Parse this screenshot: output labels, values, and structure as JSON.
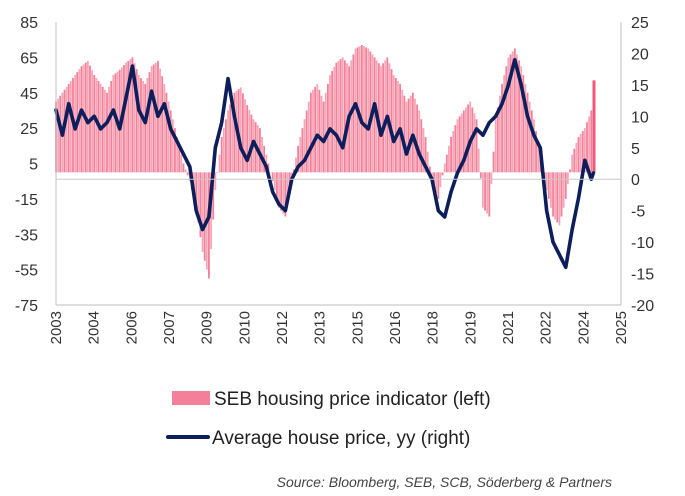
{
  "chart_data": {
    "type": "bar+line",
    "colors": {
      "bars": "#f47f98",
      "bars_light": "#f6a6b6",
      "bars_last": "#f0587a",
      "line": "#0c1f5c"
    },
    "left_axis": {
      "ylim": [
        -75,
        85
      ],
      "ticks": [
        "85",
        "65",
        "45",
        "25",
        "5",
        "-15",
        "-35",
        "-55",
        "-75"
      ]
    },
    "right_axis": {
      "ylim": [
        -20,
        25
      ],
      "ticks": [
        "25",
        "20",
        "15",
        "10",
        "5",
        "0",
        "-5",
        "-10",
        "-15",
        "-20"
      ]
    },
    "x_axis": {
      "range": [
        "2003-01",
        "2025-03"
      ],
      "ticks": [
        "2003",
        "2004",
        "2006",
        "2007",
        "2009",
        "2010",
        "2012",
        "2013",
        "2015",
        "2016",
        "2018",
        "2019",
        "2021",
        "2022",
        "2024",
        "2025"
      ]
    },
    "series": [
      {
        "name": "SEB housing price indicator (left)",
        "type": "bar",
        "axis": "left",
        "points": [
          [
            "2003-01",
            40
          ],
          [
            "2003-04",
            45
          ],
          [
            "2003-07",
            50
          ],
          [
            "2003-10",
            55
          ],
          [
            "2004-01",
            60
          ],
          [
            "2004-04",
            63
          ],
          [
            "2004-07",
            55
          ],
          [
            "2004-10",
            50
          ],
          [
            "2005-01",
            45
          ],
          [
            "2005-04",
            55
          ],
          [
            "2005-07",
            58
          ],
          [
            "2005-10",
            62
          ],
          [
            "2006-01",
            65
          ],
          [
            "2006-04",
            55
          ],
          [
            "2006-07",
            50
          ],
          [
            "2006-10",
            60
          ],
          [
            "2007-01",
            63
          ],
          [
            "2007-04",
            50
          ],
          [
            "2007-07",
            35
          ],
          [
            "2007-10",
            20
          ],
          [
            "2008-01",
            5
          ],
          [
            "2008-04",
            -5
          ],
          [
            "2008-07",
            -20
          ],
          [
            "2008-10",
            -45
          ],
          [
            "2009-01",
            -60
          ],
          [
            "2009-04",
            -10
          ],
          [
            "2009-07",
            20
          ],
          [
            "2009-10",
            35
          ],
          [
            "2010-01",
            45
          ],
          [
            "2010-04",
            48
          ],
          [
            "2010-07",
            38
          ],
          [
            "2010-10",
            30
          ],
          [
            "2011-01",
            25
          ],
          [
            "2011-04",
            10
          ],
          [
            "2011-07",
            -5
          ],
          [
            "2011-10",
            -20
          ],
          [
            "2012-01",
            -25
          ],
          [
            "2012-04",
            -5
          ],
          [
            "2012-07",
            15
          ],
          [
            "2012-10",
            30
          ],
          [
            "2013-01",
            45
          ],
          [
            "2013-04",
            50
          ],
          [
            "2013-07",
            40
          ],
          [
            "2013-10",
            55
          ],
          [
            "2014-01",
            62
          ],
          [
            "2014-04",
            65
          ],
          [
            "2014-07",
            60
          ],
          [
            "2014-10",
            70
          ],
          [
            "2015-01",
            72
          ],
          [
            "2015-04",
            70
          ],
          [
            "2015-07",
            65
          ],
          [
            "2015-10",
            60
          ],
          [
            "2016-01",
            65
          ],
          [
            "2016-04",
            55
          ],
          [
            "2016-07",
            50
          ],
          [
            "2016-10",
            40
          ],
          [
            "2017-01",
            45
          ],
          [
            "2017-04",
            35
          ],
          [
            "2017-07",
            20
          ],
          [
            "2017-10",
            -5
          ],
          [
            "2018-01",
            -15
          ],
          [
            "2018-04",
            5
          ],
          [
            "2018-07",
            20
          ],
          [
            "2018-10",
            30
          ],
          [
            "2019-01",
            35
          ],
          [
            "2019-04",
            40
          ],
          [
            "2019-07",
            30
          ],
          [
            "2019-10",
            -20
          ],
          [
            "2020-01",
            -25
          ],
          [
            "2020-04",
            30
          ],
          [
            "2020-07",
            50
          ],
          [
            "2020-10",
            65
          ],
          [
            "2021-01",
            70
          ],
          [
            "2021-04",
            60
          ],
          [
            "2021-07",
            45
          ],
          [
            "2021-10",
            30
          ],
          [
            "2022-01",
            10
          ],
          [
            "2022-04",
            -10
          ],
          [
            "2022-07",
            -25
          ],
          [
            "2022-10",
            -30
          ],
          [
            "2023-01",
            -15
          ],
          [
            "2023-04",
            10
          ],
          [
            "2023-07",
            20
          ],
          [
            "2023-10",
            25
          ],
          [
            "2024-01",
            35
          ],
          [
            "2024-02",
            52
          ]
        ]
      },
      {
        "name": "Average house price, yy (right)",
        "type": "line",
        "axis": "right",
        "points": [
          [
            "2003-01",
            11
          ],
          [
            "2003-04",
            7
          ],
          [
            "2003-07",
            12
          ],
          [
            "2003-10",
            8
          ],
          [
            "2004-01",
            11
          ],
          [
            "2004-04",
            9
          ],
          [
            "2004-07",
            10
          ],
          [
            "2004-10",
            8
          ],
          [
            "2005-01",
            9
          ],
          [
            "2005-04",
            11
          ],
          [
            "2005-07",
            8
          ],
          [
            "2005-10",
            13
          ],
          [
            "2006-01",
            18
          ],
          [
            "2006-04",
            11
          ],
          [
            "2006-07",
            9
          ],
          [
            "2006-10",
            14
          ],
          [
            "2007-01",
            10
          ],
          [
            "2007-04",
            12
          ],
          [
            "2007-07",
            8
          ],
          [
            "2007-10",
            6
          ],
          [
            "2008-01",
            4
          ],
          [
            "2008-04",
            2
          ],
          [
            "2008-07",
            -5
          ],
          [
            "2008-10",
            -8
          ],
          [
            "2009-01",
            -6
          ],
          [
            "2009-04",
            5
          ],
          [
            "2009-07",
            9
          ],
          [
            "2009-10",
            16
          ],
          [
            "2010-01",
            10
          ],
          [
            "2010-04",
            5
          ],
          [
            "2010-07",
            3
          ],
          [
            "2010-10",
            6
          ],
          [
            "2011-01",
            4
          ],
          [
            "2011-04",
            2
          ],
          [
            "2011-07",
            -2
          ],
          [
            "2011-10",
            -4
          ],
          [
            "2012-01",
            -5
          ],
          [
            "2012-04",
            0
          ],
          [
            "2012-07",
            2
          ],
          [
            "2012-10",
            3
          ],
          [
            "2013-01",
            5
          ],
          [
            "2013-04",
            7
          ],
          [
            "2013-07",
            6
          ],
          [
            "2013-10",
            8
          ],
          [
            "2014-01",
            7
          ],
          [
            "2014-04",
            5
          ],
          [
            "2014-07",
            10
          ],
          [
            "2014-10",
            12
          ],
          [
            "2015-01",
            9
          ],
          [
            "2015-04",
            8
          ],
          [
            "2015-07",
            12
          ],
          [
            "2015-10",
            7
          ],
          [
            "2016-01",
            10
          ],
          [
            "2016-04",
            6
          ],
          [
            "2016-07",
            8
          ],
          [
            "2016-10",
            4
          ],
          [
            "2017-01",
            7
          ],
          [
            "2017-04",
            4
          ],
          [
            "2017-07",
            2
          ],
          [
            "2017-10",
            0
          ],
          [
            "2018-01",
            -5
          ],
          [
            "2018-04",
            -6
          ],
          [
            "2018-07",
            -2
          ],
          [
            "2018-10",
            1
          ],
          [
            "2019-01",
            3
          ],
          [
            "2019-04",
            6
          ],
          [
            "2019-07",
            8
          ],
          [
            "2019-10",
            7
          ],
          [
            "2020-01",
            9
          ],
          [
            "2020-04",
            10
          ],
          [
            "2020-07",
            12
          ],
          [
            "2020-10",
            15
          ],
          [
            "2021-01",
            19
          ],
          [
            "2021-04",
            15
          ],
          [
            "2021-07",
            10
          ],
          [
            "2021-10",
            7
          ],
          [
            "2022-01",
            5
          ],
          [
            "2022-04",
            -5
          ],
          [
            "2022-07",
            -10
          ],
          [
            "2022-10",
            -12
          ],
          [
            "2023-01",
            -14
          ],
          [
            "2023-04",
            -8
          ],
          [
            "2023-07",
            -3
          ],
          [
            "2023-10",
            3
          ],
          [
            "2024-01",
            0
          ],
          [
            "2024-02",
            1
          ]
        ]
      }
    ],
    "legend": {
      "position": "bottom"
    },
    "grid": false,
    "source": "Source: Bloomberg, SEB, SCB, Söderberg & Partners"
  }
}
